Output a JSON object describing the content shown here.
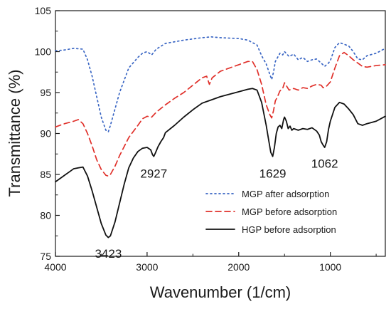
{
  "chart_data": {
    "type": "line",
    "xlabel": "Wavenumber (1/cm)",
    "ylabel": "Transmittance (%)",
    "xlim": [
      4000,
      400
    ],
    "ylim": [
      75,
      105
    ],
    "x_reversed": true,
    "x_ticks": [
      4000,
      3000,
      2000,
      1000
    ],
    "y_ticks": [
      75,
      80,
      85,
      90,
      95,
      100,
      105
    ],
    "grid": false,
    "legend_position": "bottom-right",
    "series": [
      {
        "name": "MGP after adsorption",
        "color": "#3a66c4",
        "dash": "dotted",
        "points": [
          [
            4000,
            100.1
          ],
          [
            3900,
            100.2
          ],
          [
            3800,
            100.4
          ],
          [
            3700,
            100.3
          ],
          [
            3650,
            99.0
          ],
          [
            3600,
            97.0
          ],
          [
            3550,
            94.5
          ],
          [
            3500,
            92.0
          ],
          [
            3450,
            90.4
          ],
          [
            3423,
            90.2
          ],
          [
            3400,
            91.0
          ],
          [
            3350,
            93.0
          ],
          [
            3300,
            95.0
          ],
          [
            3200,
            98.0
          ],
          [
            3100,
            99.3
          ],
          [
            3050,
            99.8
          ],
          [
            3000,
            100.0
          ],
          [
            2950,
            99.6
          ],
          [
            2900,
            100.3
          ],
          [
            2800,
            101.0
          ],
          [
            2600,
            101.4
          ],
          [
            2400,
            101.7
          ],
          [
            2300,
            101.8
          ],
          [
            2200,
            101.7
          ],
          [
            2000,
            101.6
          ],
          [
            1900,
            101.4
          ],
          [
            1800,
            100.8
          ],
          [
            1750,
            99.5
          ],
          [
            1700,
            98.5
          ],
          [
            1660,
            97.2
          ],
          [
            1640,
            96.6
          ],
          [
            1620,
            97.5
          ],
          [
            1600,
            98.8
          ],
          [
            1580,
            99.2
          ],
          [
            1550,
            99.8
          ],
          [
            1520,
            99.6
          ],
          [
            1500,
            100.0
          ],
          [
            1450,
            99.4
          ],
          [
            1400,
            99.7
          ],
          [
            1350,
            99.0
          ],
          [
            1300,
            99.3
          ],
          [
            1250,
            98.8
          ],
          [
            1200,
            99.0
          ],
          [
            1150,
            99.1
          ],
          [
            1100,
            98.6
          ],
          [
            1062,
            98.2
          ],
          [
            1020,
            98.6
          ],
          [
            1000,
            98.9
          ],
          [
            950,
            100.5
          ],
          [
            900,
            101.1
          ],
          [
            850,
            100.9
          ],
          [
            800,
            100.7
          ],
          [
            750,
            100.0
          ],
          [
            700,
            99.1
          ],
          [
            650,
            99.0
          ],
          [
            600,
            99.5
          ],
          [
            500,
            99.8
          ],
          [
            400,
            100.4
          ]
        ]
      },
      {
        "name": "MGP before adsorption",
        "color": "#e0302a",
        "dash": "dashed",
        "points": [
          [
            4000,
            90.8
          ],
          [
            3900,
            91.2
          ],
          [
            3800,
            91.5
          ],
          [
            3750,
            91.7
          ],
          [
            3700,
            91.2
          ],
          [
            3650,
            90.0
          ],
          [
            3600,
            88.5
          ],
          [
            3550,
            86.8
          ],
          [
            3500,
            85.6
          ],
          [
            3450,
            84.9
          ],
          [
            3423,
            84.8
          ],
          [
            3400,
            85.0
          ],
          [
            3350,
            86.0
          ],
          [
            3300,
            87.3
          ],
          [
            3200,
            89.5
          ],
          [
            3100,
            91.0
          ],
          [
            3050,
            91.8
          ],
          [
            3000,
            92.1
          ],
          [
            2950,
            92.0
          ],
          [
            2900,
            92.6
          ],
          [
            2800,
            93.5
          ],
          [
            2700,
            94.3
          ],
          [
            2600,
            95.0
          ],
          [
            2500,
            95.9
          ],
          [
            2400,
            96.8
          ],
          [
            2350,
            97.0
          ],
          [
            2320,
            96.0
          ],
          [
            2290,
            96.8
          ],
          [
            2200,
            97.6
          ],
          [
            2000,
            98.4
          ],
          [
            1900,
            98.8
          ],
          [
            1850,
            98.8
          ],
          [
            1800,
            97.8
          ],
          [
            1750,
            96.0
          ],
          [
            1700,
            93.5
          ],
          [
            1660,
            92.3
          ],
          [
            1640,
            91.9
          ],
          [
            1620,
            92.8
          ],
          [
            1600,
            94.0
          ],
          [
            1580,
            94.4
          ],
          [
            1550,
            95.2
          ],
          [
            1520,
            95.5
          ],
          [
            1500,
            96.2
          ],
          [
            1450,
            95.3
          ],
          [
            1400,
            95.5
          ],
          [
            1350,
            95.3
          ],
          [
            1300,
            95.6
          ],
          [
            1250,
            95.5
          ],
          [
            1200,
            95.8
          ],
          [
            1150,
            96.0
          ],
          [
            1100,
            95.9
          ],
          [
            1080,
            95.6
          ],
          [
            1062,
            95.6
          ],
          [
            1040,
            95.8
          ],
          [
            1000,
            96.3
          ],
          [
            950,
            98.0
          ],
          [
            900,
            99.5
          ],
          [
            850,
            99.9
          ],
          [
            800,
            99.5
          ],
          [
            750,
            99.0
          ],
          [
            700,
            98.6
          ],
          [
            650,
            98.2
          ],
          [
            600,
            98.1
          ],
          [
            500,
            98.3
          ],
          [
            400,
            98.4
          ]
        ]
      },
      {
        "name": "HGP before adsorption",
        "color": "#111111",
        "dash": "solid",
        "points": [
          [
            4000,
            84.1
          ],
          [
            3950,
            84.5
          ],
          [
            3900,
            84.9
          ],
          [
            3850,
            85.3
          ],
          [
            3800,
            85.7
          ],
          [
            3750,
            85.8
          ],
          [
            3700,
            85.9
          ],
          [
            3650,
            84.8
          ],
          [
            3600,
            83.0
          ],
          [
            3550,
            81.0
          ],
          [
            3500,
            79.0
          ],
          [
            3450,
            77.6
          ],
          [
            3423,
            77.3
          ],
          [
            3400,
            77.5
          ],
          [
            3350,
            79.2
          ],
          [
            3300,
            81.5
          ],
          [
            3250,
            83.8
          ],
          [
            3200,
            85.8
          ],
          [
            3150,
            87.0
          ],
          [
            3100,
            87.8
          ],
          [
            3050,
            88.2
          ],
          [
            3000,
            88.3
          ],
          [
            2960,
            88.0
          ],
          [
            2940,
            87.4
          ],
          [
            2927,
            87.2
          ],
          [
            2910,
            87.6
          ],
          [
            2880,
            88.4
          ],
          [
            2850,
            89.0
          ],
          [
            2820,
            89.5
          ],
          [
            2800,
            90.1
          ],
          [
            2700,
            91.0
          ],
          [
            2600,
            92.0
          ],
          [
            2500,
            92.9
          ],
          [
            2400,
            93.7
          ],
          [
            2350,
            93.9
          ],
          [
            2300,
            94.1
          ],
          [
            2200,
            94.5
          ],
          [
            2000,
            95.1
          ],
          [
            1900,
            95.4
          ],
          [
            1850,
            95.5
          ],
          [
            1800,
            95.3
          ],
          [
            1750,
            93.8
          ],
          [
            1700,
            91.0
          ],
          [
            1670,
            89.0
          ],
          [
            1650,
            87.7
          ],
          [
            1629,
            87.2
          ],
          [
            1610,
            88.3
          ],
          [
            1590,
            90.0
          ],
          [
            1570,
            90.8
          ],
          [
            1550,
            91.0
          ],
          [
            1530,
            90.6
          ],
          [
            1510,
            91.7
          ],
          [
            1500,
            92.0
          ],
          [
            1480,
            91.5
          ],
          [
            1460,
            90.6
          ],
          [
            1440,
            90.9
          ],
          [
            1420,
            90.4
          ],
          [
            1400,
            90.6
          ],
          [
            1350,
            90.4
          ],
          [
            1300,
            90.6
          ],
          [
            1250,
            90.5
          ],
          [
            1200,
            90.7
          ],
          [
            1150,
            90.3
          ],
          [
            1120,
            89.8
          ],
          [
            1100,
            89.0
          ],
          [
            1080,
            88.6
          ],
          [
            1062,
            88.3
          ],
          [
            1040,
            89.0
          ],
          [
            1020,
            90.5
          ],
          [
            1000,
            91.5
          ],
          [
            950,
            93.2
          ],
          [
            900,
            93.8
          ],
          [
            850,
            93.6
          ],
          [
            800,
            93.0
          ],
          [
            750,
            92.3
          ],
          [
            700,
            91.2
          ],
          [
            650,
            91.0
          ],
          [
            600,
            91.2
          ],
          [
            500,
            91.5
          ],
          [
            450,
            91.8
          ],
          [
            400,
            92.1
          ]
        ]
      }
    ],
    "annotations": [
      {
        "text": "3423",
        "x": 3423,
        "y": 76.2
      },
      {
        "text": "2927",
        "x": 2927,
        "y": 86.0
      },
      {
        "text": "1629",
        "x": 1629,
        "y": 86.0
      },
      {
        "text": "1062",
        "x": 1062,
        "y": 87.2
      }
    ]
  }
}
